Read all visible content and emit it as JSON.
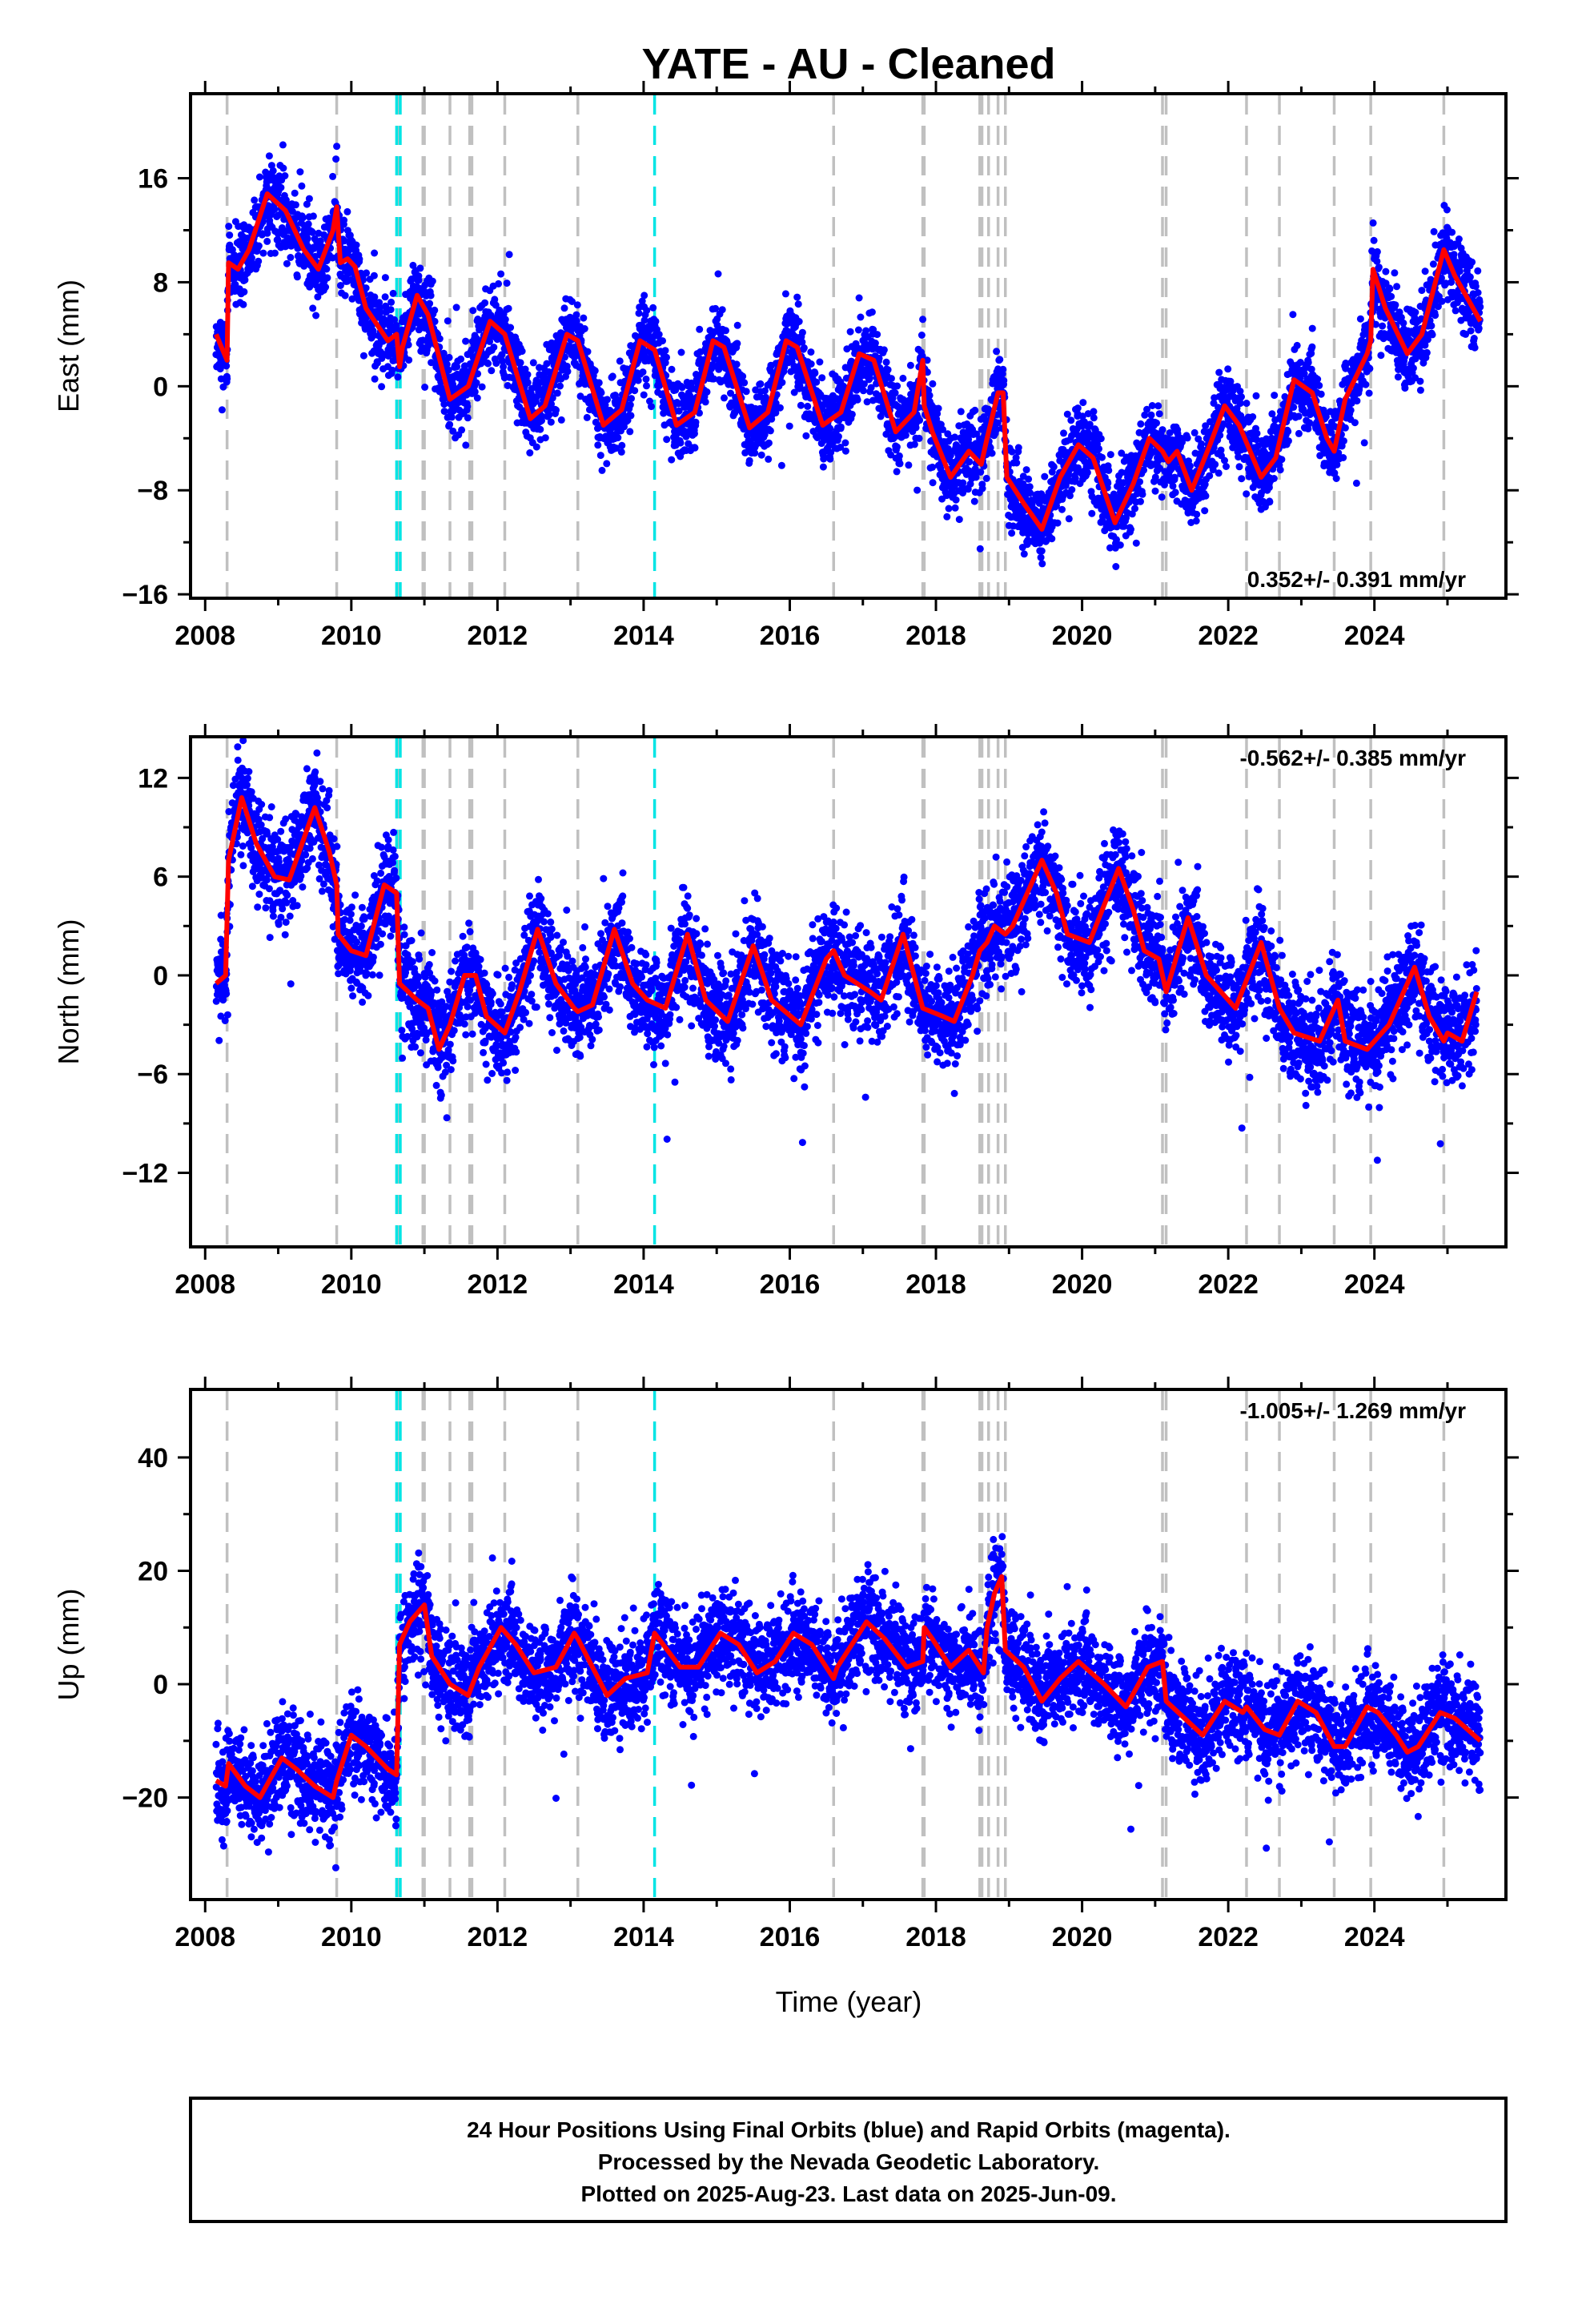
{
  "title": "YATE  - AU - Cleaned",
  "xlabel": "Time (year)",
  "footer": [
    "24 Hour Positions Using Final Orbits (blue) and Rapid Orbits (magenta).",
    "Processed by the Nevada Geodetic Laboratory.",
    "Plotted on 2025-Aug-23. Last data on 2025-Jun-09."
  ],
  "colors": {
    "data": "#0000ff",
    "model": "#ff0000",
    "equip_line": "#c0c0c0",
    "eq_line": "#00e5e5"
  },
  "chart_data": [
    {
      "type": "scatter",
      "component": "east",
      "ylabel": "East (mm)",
      "xlim": [
        2007.8,
        2025.8
      ],
      "ylim": [
        -16.3,
        22.5
      ],
      "xticks": [
        "2008",
        "2010",
        "2012",
        "2014",
        "2016",
        "2018",
        "2020",
        "2022",
        "2024"
      ],
      "yticks": [
        "16",
        "8",
        "0",
        "-8",
        "-16"
      ],
      "rate_label": "0.352+/- 0.391 mm/yr",
      "rate_position": "bottom-right",
      "model": [
        [
          2008.15,
          4
        ],
        [
          2008.3,
          2
        ],
        [
          2008.32,
          9.5
        ],
        [
          2008.45,
          9
        ],
        [
          2008.6,
          10.5
        ],
        [
          2008.85,
          14.8
        ],
        [
          2009.1,
          13.5
        ],
        [
          2009.35,
          10.5
        ],
        [
          2009.55,
          9
        ],
        [
          2009.75,
          12
        ],
        [
          2009.8,
          13.8
        ],
        [
          2009.85,
          9.5
        ],
        [
          2009.95,
          9.8
        ],
        [
          2010.05,
          9.2
        ],
        [
          2010.2,
          6
        ],
        [
          2010.5,
          3.5
        ],
        [
          2010.62,
          4
        ],
        [
          2010.66,
          1.5
        ],
        [
          2010.7,
          3
        ],
        [
          2010.9,
          7
        ],
        [
          2011.05,
          5.5
        ],
        [
          2011.35,
          -1
        ],
        [
          2011.6,
          0
        ],
        [
          2011.9,
          5
        ],
        [
          2012.1,
          4
        ],
        [
          2012.45,
          -2.5
        ],
        [
          2012.65,
          -1.5
        ],
        [
          2012.95,
          4
        ],
        [
          2013.1,
          3.5
        ],
        [
          2013.45,
          -3
        ],
        [
          2013.7,
          -1.8
        ],
        [
          2013.95,
          3.5
        ],
        [
          2014.15,
          2.8
        ],
        [
          2014.45,
          -3
        ],
        [
          2014.7,
          -2
        ],
        [
          2014.95,
          3.5
        ],
        [
          2015.1,
          3
        ],
        [
          2015.45,
          -3.2
        ],
        [
          2015.7,
          -2
        ],
        [
          2015.95,
          3.5
        ],
        [
          2016.1,
          3
        ],
        [
          2016.45,
          -3
        ],
        [
          2016.7,
          -2
        ],
        [
          2016.95,
          2.5
        ],
        [
          2017.15,
          2
        ],
        [
          2017.45,
          -3.5
        ],
        [
          2017.7,
          -2
        ],
        [
          2017.82,
          2
        ],
        [
          2017.84,
          -1.5
        ],
        [
          2017.95,
          -3.5
        ],
        [
          2018.2,
          -7
        ],
        [
          2018.45,
          -5
        ],
        [
          2018.62,
          -6
        ],
        [
          2018.7,
          -4
        ],
        [
          2018.85,
          -0.5
        ],
        [
          2018.92,
          -0.5
        ],
        [
          2018.97,
          -7
        ],
        [
          2019.2,
          -9
        ],
        [
          2019.45,
          -11
        ],
        [
          2019.7,
          -7
        ],
        [
          2019.95,
          -4.5
        ],
        [
          2020.15,
          -5.5
        ],
        [
          2020.45,
          -10.5
        ],
        [
          2020.7,
          -7.5
        ],
        [
          2020.92,
          -4
        ],
        [
          2021.1,
          -5
        ],
        [
          2021.18,
          -5.8
        ],
        [
          2021.3,
          -5
        ],
        [
          2021.5,
          -8
        ],
        [
          2021.75,
          -4.5
        ],
        [
          2021.95,
          -1.5
        ],
        [
          2022.15,
          -3
        ],
        [
          2022.45,
          -7
        ],
        [
          2022.65,
          -5.5
        ],
        [
          2022.9,
          0.5
        ],
        [
          2023.15,
          -0.5
        ],
        [
          2023.35,
          -4
        ],
        [
          2023.45,
          -5
        ],
        [
          2023.6,
          -1
        ],
        [
          2023.9,
          2.5
        ],
        [
          2023.95,
          3.5
        ],
        [
          2023.98,
          9
        ],
        [
          2024.15,
          6
        ],
        [
          2024.45,
          2.5
        ],
        [
          2024.65,
          4
        ],
        [
          2024.95,
          10.5
        ],
        [
          2025.1,
          8.5
        ],
        [
          2025.45,
          5
        ]
      ]
    },
    {
      "type": "scatter",
      "component": "north",
      "ylabel": "North (mm)",
      "xlim": [
        2007.8,
        2025.8
      ],
      "ylim": [
        -16.5,
        14.5
      ],
      "xticks": [
        "2008",
        "2010",
        "2012",
        "2014",
        "2016",
        "2018",
        "2020",
        "2022",
        "2024"
      ],
      "yticks": [
        "12",
        "6",
        "0",
        "-6",
        "-12"
      ],
      "rate_label": "-0.562+/- 0.385 mm/yr",
      "rate_position": "top-right",
      "model": [
        [
          2008.15,
          -0.5
        ],
        [
          2008.28,
          0
        ],
        [
          2008.32,
          7
        ],
        [
          2008.5,
          10.8
        ],
        [
          2008.7,
          8
        ],
        [
          2008.95,
          6
        ],
        [
          2009.15,
          5.8
        ],
        [
          2009.5,
          10.2
        ],
        [
          2009.7,
          7.5
        ],
        [
          2009.8,
          5.5
        ],
        [
          2009.82,
          2.5
        ],
        [
          2010.0,
          1.5
        ],
        [
          2010.2,
          1.2
        ],
        [
          2010.45,
          5.5
        ],
        [
          2010.62,
          5
        ],
        [
          2010.66,
          -0.5
        ],
        [
          2010.9,
          -1.5
        ],
        [
          2011.05,
          -2
        ],
        [
          2011.2,
          -4.5
        ],
        [
          2011.35,
          -3
        ],
        [
          2011.55,
          0
        ],
        [
          2011.7,
          0
        ],
        [
          2011.85,
          -2.5
        ],
        [
          2012.1,
          -3.5
        ],
        [
          2012.3,
          -1
        ],
        [
          2012.55,
          2.8
        ],
        [
          2012.8,
          -0.5
        ],
        [
          2013.05,
          -2
        ],
        [
          2013.1,
          -2.2
        ],
        [
          2013.3,
          -1.8
        ],
        [
          2013.6,
          2.8
        ],
        [
          2013.85,
          -0.5
        ],
        [
          2014.05,
          -1.5
        ],
        [
          2014.3,
          -2
        ],
        [
          2014.6,
          2.5
        ],
        [
          2014.85,
          -1.5
        ],
        [
          2015.15,
          -2.8
        ],
        [
          2015.5,
          1.8
        ],
        [
          2015.75,
          -1.5
        ],
        [
          2016.15,
          -3
        ],
        [
          2016.5,
          1
        ],
        [
          2016.6,
          1.5
        ],
        [
          2016.75,
          0
        ],
        [
          2017.1,
          -1
        ],
        [
          2017.25,
          -1.5
        ],
        [
          2017.55,
          2.5
        ],
        [
          2017.82,
          -2
        ],
        [
          2018.1,
          -2.5
        ],
        [
          2018.25,
          -2.8
        ],
        [
          2018.5,
          0
        ],
        [
          2018.6,
          1.5
        ],
        [
          2018.7,
          2
        ],
        [
          2018.8,
          3
        ],
        [
          2018.95,
          2.5
        ],
        [
          2019.05,
          3
        ],
        [
          2019.45,
          7
        ],
        [
          2019.65,
          5
        ],
        [
          2019.8,
          2.5
        ],
        [
          2020.1,
          2
        ],
        [
          2020.5,
          6.5
        ],
        [
          2020.7,
          4
        ],
        [
          2020.85,
          1.5
        ],
        [
          2021.05,
          1
        ],
        [
          2021.15,
          -1
        ],
        [
          2021.45,
          3.5
        ],
        [
          2021.7,
          0
        ],
        [
          2021.9,
          -1
        ],
        [
          2022.1,
          -2
        ],
        [
          2022.45,
          2
        ],
        [
          2022.7,
          -2
        ],
        [
          2022.9,
          -3.5
        ],
        [
          2023.25,
          -4
        ],
        [
          2023.5,
          -1.5
        ],
        [
          2023.6,
          -4
        ],
        [
          2023.9,
          -4.5
        ],
        [
          2024.0,
          -4
        ],
        [
          2024.2,
          -3
        ],
        [
          2024.55,
          0.5
        ],
        [
          2024.75,
          -2.5
        ],
        [
          2024.95,
          -4
        ],
        [
          2025.0,
          -3.5
        ],
        [
          2025.2,
          -4
        ],
        [
          2025.4,
          -1
        ]
      ]
    },
    {
      "type": "scatter",
      "component": "up",
      "ylabel": "Up (mm)",
      "xlim": [
        2007.8,
        2025.8
      ],
      "ylim": [
        -38,
        52
      ],
      "xticks": [
        "2008",
        "2010",
        "2012",
        "2014",
        "2016",
        "2018",
        "2020",
        "2022",
        "2024"
      ],
      "yticks": [
        "40",
        "20",
        "0",
        "-20"
      ],
      "rate_label": "-1.005+/- 1.269 mm/yr",
      "rate_position": "top-right",
      "model": [
        [
          2008.15,
          -17
        ],
        [
          2008.28,
          -18
        ],
        [
          2008.32,
          -14
        ],
        [
          2008.55,
          -18
        ],
        [
          2008.75,
          -20
        ],
        [
          2009.05,
          -13
        ],
        [
          2009.25,
          -15
        ],
        [
          2009.5,
          -18
        ],
        [
          2009.75,
          -20
        ],
        [
          2009.8,
          -17
        ],
        [
          2010.0,
          -9
        ],
        [
          2010.2,
          -11
        ],
        [
          2010.5,
          -15
        ],
        [
          2010.62,
          -16
        ],
        [
          2010.66,
          7
        ],
        [
          2010.8,
          11
        ],
        [
          2011.0,
          14
        ],
        [
          2011.1,
          5
        ],
        [
          2011.35,
          0
        ],
        [
          2011.6,
          -2
        ],
        [
          2011.75,
          3
        ],
        [
          2012.05,
          10
        ],
        [
          2012.25,
          7
        ],
        [
          2012.5,
          2
        ],
        [
          2012.8,
          3
        ],
        [
          2013.05,
          9
        ],
        [
          2013.1,
          8
        ],
        [
          2013.5,
          -2
        ],
        [
          2013.75,
          1
        ],
        [
          2014.05,
          2
        ],
        [
          2014.15,
          9
        ],
        [
          2014.5,
          3
        ],
        [
          2014.75,
          3
        ],
        [
          2015.05,
          9
        ],
        [
          2015.3,
          7
        ],
        [
          2015.55,
          2
        ],
        [
          2015.8,
          4
        ],
        [
          2016.05,
          9
        ],
        [
          2016.3,
          7
        ],
        [
          2016.6,
          1
        ],
        [
          2016.65,
          3
        ],
        [
          2017.05,
          11
        ],
        [
          2017.3,
          8
        ],
        [
          2017.6,
          3
        ],
        [
          2017.82,
          4
        ],
        [
          2017.84,
          10
        ],
        [
          2017.95,
          8
        ],
        [
          2018.2,
          3
        ],
        [
          2018.45,
          6
        ],
        [
          2018.65,
          2
        ],
        [
          2018.7,
          10
        ],
        [
          2018.8,
          16
        ],
        [
          2018.9,
          19
        ],
        [
          2018.95,
          6
        ],
        [
          2019.2,
          3
        ],
        [
          2019.45,
          -3
        ],
        [
          2019.7,
          1
        ],
        [
          2019.95,
          4
        ],
        [
          2020.3,
          0
        ],
        [
          2020.6,
          -4
        ],
        [
          2020.9,
          3
        ],
        [
          2021.1,
          4
        ],
        [
          2021.15,
          -3
        ],
        [
          2021.4,
          -6
        ],
        [
          2021.65,
          -9
        ],
        [
          2021.95,
          -3
        ],
        [
          2022.2,
          -5
        ],
        [
          2022.25,
          -4
        ],
        [
          2022.5,
          -8
        ],
        [
          2022.7,
          -9
        ],
        [
          2022.95,
          -3
        ],
        [
          2023.2,
          -5
        ],
        [
          2023.45,
          -11
        ],
        [
          2023.6,
          -11
        ],
        [
          2023.9,
          -4
        ],
        [
          2024.05,
          -5
        ],
        [
          2024.3,
          -9
        ],
        [
          2024.45,
          -12
        ],
        [
          2024.6,
          -11
        ],
        [
          2024.9,
          -5
        ],
        [
          2025.1,
          -6
        ],
        [
          2025.45,
          -10
        ]
      ]
    }
  ],
  "equipment_changes": [
    2008.3,
    2009.8,
    2010.65,
    2010.66,
    2010.98,
    2011.0,
    2011.35,
    2011.62,
    2011.65,
    2012.1,
    2013.1,
    2016.6,
    2017.82,
    2017.84,
    2018.6,
    2018.63,
    2018.72,
    2018.85,
    2018.95,
    2021.1,
    2021.15,
    2022.25,
    2022.7,
    2023.45,
    2023.95,
    2024.95
  ],
  "earthquakes": [
    2010.62,
    2010.67,
    2014.15
  ]
}
